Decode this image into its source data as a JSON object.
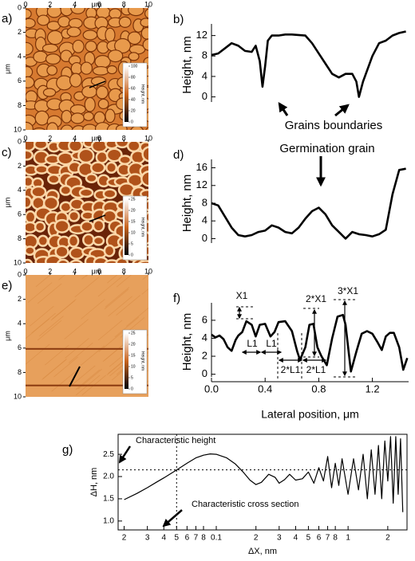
{
  "chart_data": [
    {
      "type": "image",
      "panel": "a)",
      "xlabel": "μm",
      "ylabel": "μm",
      "xlim": [
        0,
        10
      ],
      "ylim": [
        0,
        10
      ],
      "y_inverted": true,
      "xticks": [
        0,
        2,
        4,
        6,
        8,
        10
      ],
      "yticks": [
        0,
        2,
        4,
        6,
        8,
        10
      ],
      "colorbar": {
        "label": "Height, nm",
        "lim": [
          0,
          100
        ],
        "ticks": [
          0,
          20,
          40,
          60,
          80,
          100
        ]
      }
    },
    {
      "type": "line",
      "panel": "b)",
      "ylabel": "Height, nm",
      "annotations": [
        "Grains boundaries"
      ],
      "xlim": [
        0,
        1.47
      ],
      "ylim": [
        -1,
        13.5
      ],
      "yticks": [
        0,
        4,
        8,
        12
      ],
      "x": [
        0,
        0.05,
        0.1,
        0.15,
        0.2,
        0.25,
        0.3,
        0.33,
        0.36,
        0.38,
        0.4,
        0.42,
        0.45,
        0.5,
        0.55,
        0.6,
        0.7,
        0.75,
        0.8,
        0.85,
        0.9,
        0.95,
        1.0,
        1.05,
        1.08,
        1.1,
        1.13,
        1.2,
        1.25,
        1.3,
        1.35,
        1.4,
        1.45
      ],
      "series": [
        {
          "color": "#000000",
          "values": [
            8.2,
            8.5,
            9.5,
            10.5,
            10,
            9,
            8.8,
            10,
            7,
            2,
            6,
            11,
            12,
            12,
            12.2,
            12.2,
            12,
            10.5,
            8.5,
            6.5,
            4.5,
            3.8,
            4.5,
            4.5,
            3,
            0,
            3,
            8,
            10.5,
            11,
            12,
            12.5,
            12.8
          ]
        }
      ]
    },
    {
      "type": "image",
      "panel": "c)",
      "xlabel": "μm",
      "ylabel": "μm",
      "xlim": [
        0,
        10
      ],
      "ylim": [
        0,
        10
      ],
      "y_inverted": true,
      "xticks": [
        0,
        2,
        4,
        6,
        8,
        10
      ],
      "yticks": [
        0,
        2,
        4,
        6,
        8,
        10
      ],
      "colorbar": {
        "label": "Height, nm",
        "lim": [
          0,
          25
        ],
        "ticks": [
          0,
          5,
          10,
          15,
          20,
          25
        ]
      }
    },
    {
      "type": "line",
      "panel": "d)",
      "ylabel": "Height, nm",
      "annotations": [
        "Germination grain"
      ],
      "xlim": [
        0,
        1.47
      ],
      "ylim": [
        -1,
        17
      ],
      "yticks": [
        0,
        4,
        8,
        12,
        16
      ],
      "x": [
        0,
        0.05,
        0.1,
        0.15,
        0.2,
        0.25,
        0.3,
        0.35,
        0.4,
        0.45,
        0.5,
        0.55,
        0.6,
        0.65,
        0.7,
        0.75,
        0.8,
        0.85,
        0.9,
        0.95,
        1.0,
        1.05,
        1.1,
        1.15,
        1.2,
        1.25,
        1.3,
        1.35,
        1.4,
        1.45
      ],
      "series": [
        {
          "color": "#000000",
          "values": [
            8,
            7.5,
            5,
            2.5,
            0.8,
            0.5,
            0.8,
            1.5,
            1.8,
            3,
            2.5,
            1.5,
            1.2,
            2.5,
            4.5,
            6.2,
            7,
            5.5,
            3,
            1.5,
            0,
            1.5,
            1,
            0.8,
            0.5,
            1,
            2,
            10,
            15.5,
            15.8
          ]
        }
      ]
    },
    {
      "type": "image",
      "panel": "e)",
      "xlabel": "μm",
      "ylabel": "μm",
      "xlim": [
        0,
        10
      ],
      "ylim": [
        0,
        10
      ],
      "y_inverted": true,
      "xticks": [
        0,
        2,
        4,
        6,
        8,
        10
      ],
      "yticks": [
        0,
        2,
        4,
        6,
        8,
        10
      ],
      "colorbar": {
        "label": "Height, nm",
        "lim": [
          0,
          25
        ],
        "ticks": [
          0,
          5,
          10,
          15,
          20,
          25
        ]
      }
    },
    {
      "type": "line",
      "panel": "f)",
      "xlabel": "Lateral position, μm",
      "ylabel": "Height, nm",
      "annotations": [
        "X1",
        "L1",
        "L1",
        "2*X1",
        "2*L1",
        "2*L1",
        "3*X1"
      ],
      "xlim": [
        0,
        1.47
      ],
      "ylim": [
        -0.3,
        7.5
      ],
      "yticks": [
        0,
        2,
        4,
        6
      ],
      "xticks": [
        {
          "value": 0,
          "label": "0.0"
        },
        0.4,
        0.8,
        1.2
      ],
      "x": [
        0,
        0.03,
        0.06,
        0.09,
        0.12,
        0.15,
        0.18,
        0.2,
        0.23,
        0.26,
        0.3,
        0.33,
        0.36,
        0.4,
        0.44,
        0.47,
        0.5,
        0.55,
        0.6,
        0.64,
        0.66,
        0.7,
        0.73,
        0.76,
        0.79,
        0.82,
        0.86,
        0.9,
        0.94,
        0.98,
        1.0,
        1.04,
        1.08,
        1.12,
        1.16,
        1.2,
        1.24,
        1.27,
        1.3,
        1.33,
        1.36,
        1.4,
        1.43,
        1.46
      ],
      "series": [
        {
          "color": "#000000",
          "values": [
            4.4,
            4.1,
            4.3,
            3.9,
            3,
            2.6,
            3.8,
            4.3,
            4.7,
            5.9,
            5.5,
            4.2,
            5.5,
            5.6,
            4.2,
            4.7,
            5.8,
            5.9,
            4.8,
            2.5,
            1.6,
            3,
            5.5,
            5.6,
            3,
            2,
            1,
            4,
            6.4,
            6.6,
            5.5,
            0.3,
            2.5,
            4.5,
            4.8,
            4.5,
            3.5,
            2.7,
            4.2,
            4.6,
            4.6,
            3,
            0.5,
            1.8
          ]
        }
      ]
    },
    {
      "type": "line",
      "panel": "g)",
      "xlabel": "ΔX, nm",
      "ylabel": "ΔH, nm",
      "annotations": [
        "Characteristic height",
        "Characteristic cross section"
      ],
      "xscale": "log",
      "xlim": [
        0.018,
        2.8
      ],
      "ylim": [
        0.8,
        2.95
      ],
      "yticks": [
        {
          "value": 1,
          "label": "1.0"
        },
        1.5,
        {
          "value": 2,
          "label": "2.0"
        },
        2.5
      ],
      "xticks": [
        {
          "value": 0.02,
          "label": "2"
        },
        {
          "value": 0.03,
          "label": "3"
        },
        {
          "value": 0.04,
          "label": "4"
        },
        {
          "value": 0.05,
          "label": "5"
        },
        {
          "value": 0.06,
          "label": "6"
        },
        {
          "value": 0.07,
          "label": "7"
        },
        {
          "value": 0.08,
          "label": "8"
        },
        0.1,
        {
          "value": 0.2,
          "label": "2"
        },
        {
          "value": 0.3,
          "label": "3"
        },
        {
          "value": 0.4,
          "label": "4"
        },
        {
          "value": 0.5,
          "label": "5"
        },
        {
          "value": 0.6,
          "label": "6"
        },
        {
          "value": 0.7,
          "label": "7"
        },
        {
          "value": 0.8,
          "label": "8"
        },
        1,
        2
      ],
      "reference_lines": {
        "x": 0.05,
        "y": 2.15
      },
      "x": [
        0.02,
        0.025,
        0.03,
        0.035,
        0.04,
        0.05,
        0.06,
        0.07,
        0.08,
        0.09,
        0.1,
        0.12,
        0.14,
        0.16,
        0.18,
        0.2,
        0.22,
        0.25,
        0.28,
        0.3,
        0.33,
        0.36,
        0.4,
        0.45,
        0.5,
        0.55,
        0.6,
        0.65,
        0.7,
        0.75,
        0.8,
        0.85,
        0.9,
        1.0,
        1.1,
        1.2,
        1.3,
        1.4,
        1.5,
        1.6,
        1.7,
        1.8,
        1.9,
        2.0,
        2.1,
        2.2,
        2.3,
        2.4,
        2.5,
        2.6
      ],
      "series": [
        {
          "color": "#000000",
          "values": [
            1.48,
            1.62,
            1.75,
            1.87,
            1.97,
            2.15,
            2.3,
            2.42,
            2.48,
            2.51,
            2.5,
            2.42,
            2.28,
            2.1,
            1.92,
            1.82,
            1.87,
            2.05,
            1.98,
            1.85,
            1.93,
            2.05,
            1.92,
            1.95,
            2.1,
            1.85,
            2.2,
            1.9,
            2.45,
            1.75,
            2.3,
            1.8,
            2.4,
            1.6,
            2.4,
            1.7,
            2.5,
            1.5,
            2.6,
            1.6,
            2.7,
            1.5,
            2.8,
            1.9,
            2.9,
            1.4,
            2.9,
            1.6,
            2.85,
            1.2
          ]
        }
      ]
    }
  ]
}
